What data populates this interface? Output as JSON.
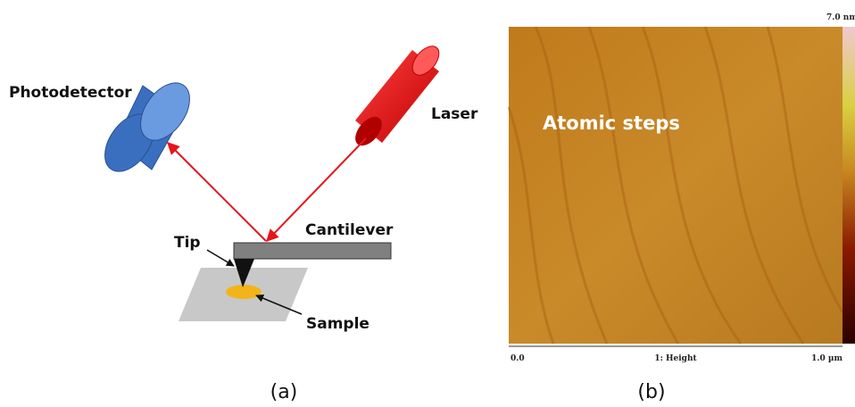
{
  "panel_a": {
    "labels": {
      "photodetector": "Photodetector",
      "laser": "Laser",
      "cantilever": "Cantilever",
      "tip": "Tip",
      "sample": "Sample"
    },
    "caption": "(a)"
  },
  "panel_b": {
    "annotation": "Atomic steps",
    "colorbar_max": "7.0 nm",
    "axis_start": "0.0",
    "axis_label": "1: Height",
    "axis_end": "1.0 µm",
    "caption": "(b)"
  }
}
